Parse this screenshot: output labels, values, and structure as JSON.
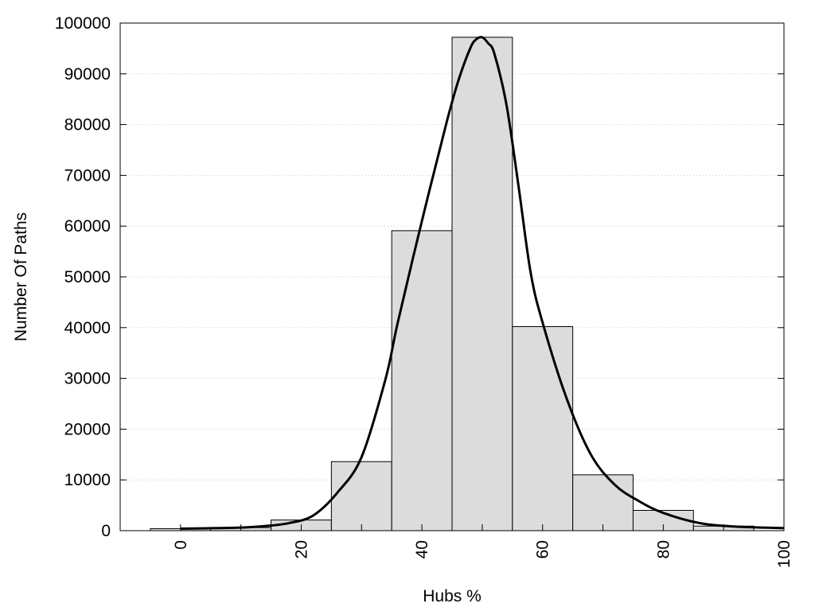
{
  "chart_data": {
    "type": "bar",
    "xlabel": "Hubs %",
    "ylabel": "Number Of Paths",
    "xlim": [
      -10,
      100
    ],
    "ylim": [
      0,
      100000
    ],
    "x_ticks": [
      0,
      20,
      40,
      60,
      80,
      100
    ],
    "y_ticks": [
      0,
      10000,
      20000,
      30000,
      40000,
      50000,
      60000,
      70000,
      80000,
      90000,
      100000
    ],
    "grid": "horizontal dotted",
    "bar_color": "#dcdcdc",
    "bin_width": 10,
    "bars": [
      {
        "center": 0,
        "value": 400
      },
      {
        "center": 10,
        "value": 600
      },
      {
        "center": 20,
        "value": 2100
      },
      {
        "center": 30,
        "value": 13600
      },
      {
        "center": 40,
        "value": 59100
      },
      {
        "center": 50,
        "value": 97200
      },
      {
        "center": 60,
        "value": 40200
      },
      {
        "center": 70,
        "value": 11000
      },
      {
        "center": 80,
        "value": 4000
      },
      {
        "center": 90,
        "value": 900
      }
    ],
    "curve": {
      "x": [
        0,
        6,
        10,
        14,
        18,
        22,
        26,
        30,
        34,
        36,
        40,
        44,
        46,
        48,
        49,
        50,
        51,
        52,
        54,
        56,
        58,
        60,
        64,
        68,
        72,
        76,
        80,
        86,
        92,
        100
      ],
      "y": [
        400,
        500,
        600,
        900,
        1500,
        3000,
        7500,
        14500,
        30000,
        41000,
        61000,
        80000,
        88500,
        95000,
        96800,
        97200,
        96000,
        94000,
        84000,
        68000,
        51000,
        41000,
        26000,
        15000,
        9000,
        5800,
        3500,
        1500,
        800,
        500
      ]
    }
  }
}
